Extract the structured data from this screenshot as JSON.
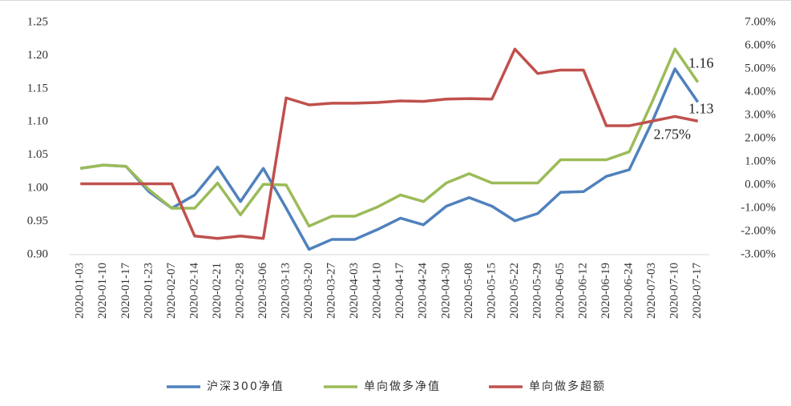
{
  "chart_data": {
    "type": "line",
    "categories": [
      "2020-01-03",
      "2020-01-10",
      "2020-01-17",
      "2020-01-23",
      "2020-02-07",
      "2020-02-14",
      "2020-02-21",
      "2020-02-28",
      "2020-03-06",
      "2020-03-13",
      "2020-03-20",
      "2020-03-27",
      "2020-04-03",
      "2020-04-10",
      "2020-04-17",
      "2020-04-24",
      "2020-04-30",
      "2020-05-08",
      "2020-05-15",
      "2020-05-22",
      "2020-05-29",
      "2020-06-05",
      "2020-06-12",
      "2020-06-19",
      "2020-06-24",
      "2020-07-03",
      "2020-07-10",
      "2020-07-17"
    ],
    "series": [
      {
        "name": "沪深300净值",
        "color": "#4f81bd",
        "values": [
          1.03,
          1.035,
          1.033,
          0.995,
          0.97,
          0.99,
          1.032,
          0.98,
          1.03,
          0.97,
          0.908,
          0.923,
          0.923,
          0.938,
          0.955,
          0.945,
          0.973,
          0.986,
          0.973,
          0.951,
          0.962,
          0.994,
          0.995,
          1.018,
          1.028,
          1.1,
          1.18,
          1.13
        ],
        "value_labels": [
          null,
          null,
          null,
          null,
          null,
          null,
          null,
          null,
          null,
          null,
          null,
          null,
          null,
          null,
          null,
          null,
          null,
          null,
          null,
          null,
          null,
          null,
          null,
          null,
          null,
          null,
          null,
          "1.13"
        ]
      },
      {
        "name": "单向做多净值",
        "color": "#9bbb59",
        "values": [
          1.03,
          1.035,
          1.033,
          0.998,
          0.97,
          0.97,
          1.008,
          0.96,
          1.006,
          1.005,
          0.943,
          0.958,
          0.958,
          0.972,
          0.99,
          0.98,
          1.008,
          1.022,
          1.008,
          1.008,
          1.008,
          1.043,
          1.043,
          1.043,
          1.055,
          1.13,
          1.21,
          1.16
        ],
        "value_labels": [
          null,
          null,
          null,
          null,
          null,
          null,
          null,
          null,
          null,
          null,
          null,
          null,
          null,
          null,
          null,
          null,
          null,
          null,
          null,
          null,
          null,
          null,
          null,
          null,
          null,
          null,
          null,
          "1.16"
        ]
      },
      {
        "name": "单向做多超额",
        "color": "#c0504d",
        "axis": "y2",
        "values": [
          0.05,
          0.05,
          0.05,
          0.05,
          0.05,
          -2.2,
          -2.3,
          -2.2,
          -2.3,
          3.75,
          3.45,
          3.52,
          3.52,
          3.55,
          3.62,
          3.6,
          3.7,
          3.72,
          3.7,
          5.85,
          4.8,
          4.95,
          4.95,
          2.55,
          2.55,
          2.75,
          2.95,
          2.75
        ],
        "value_labels": [
          null,
          null,
          null,
          null,
          null,
          null,
          null,
          null,
          null,
          null,
          null,
          null,
          null,
          null,
          null,
          null,
          null,
          null,
          null,
          null,
          null,
          null,
          null,
          null,
          null,
          null,
          null,
          "2.75%"
        ]
      }
    ],
    "ylim": [
      0.9,
      1.25
    ],
    "yticks": [
      {
        "value": 0.9,
        "label": "0.90"
      },
      0.95,
      {
        "value": 1.0,
        "label": "1.00"
      },
      1.05,
      {
        "value": 1.1,
        "label": "1.10"
      },
      1.15,
      {
        "value": 1.2,
        "label": "1.20"
      },
      1.25
    ],
    "y2lim": [
      -3,
      7
    ],
    "y2ticks": [
      {
        "value": -3,
        "label": "-3.00%"
      },
      {
        "value": -2,
        "label": "-2.00%"
      },
      {
        "value": -1,
        "label": "-1.00%"
      },
      {
        "value": 0,
        "label": "0.00%"
      },
      {
        "value": 1,
        "label": "1.00%"
      },
      {
        "value": 2,
        "label": "2.00%"
      },
      {
        "value": 3,
        "label": "3.00%"
      },
      {
        "value": 4,
        "label": "4.00%"
      },
      {
        "value": 5,
        "label": "5.00%"
      },
      {
        "value": 6,
        "label": "6.00%"
      },
      {
        "value": 7,
        "label": "7.00%"
      }
    ],
    "legend": "bottom"
  }
}
